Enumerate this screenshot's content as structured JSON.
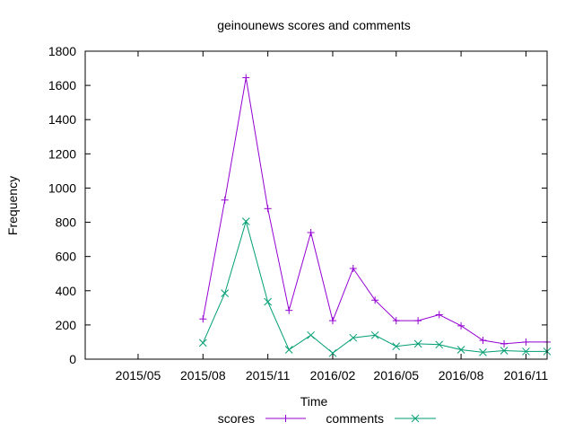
{
  "chart_data": {
    "type": "line",
    "title": "geinounews scores and comments",
    "xlabel": "Time",
    "ylabel": "Frequency",
    "xlim": [
      "2015-02-15",
      "2016-12-01"
    ],
    "ylim": [
      0,
      1800
    ],
    "yticks": [
      0,
      200,
      400,
      600,
      800,
      1000,
      1200,
      1400,
      1600,
      1800
    ],
    "xticks": [
      {
        "label": "2015/05",
        "date": "2015-05-01"
      },
      {
        "label": "2015/08",
        "date": "2015-08-01"
      },
      {
        "label": "2015/11",
        "date": "2015-11-01"
      },
      {
        "label": "2016/02",
        "date": "2016-02-01"
      },
      {
        "label": "2016/05",
        "date": "2016-05-01"
      },
      {
        "label": "2016/08",
        "date": "2016-08-01"
      },
      {
        "label": "2016/11",
        "date": "2016-11-01"
      }
    ],
    "x": [
      "2015-08-01",
      "2015-09-01",
      "2015-10-01",
      "2015-11-01",
      "2015-12-01",
      "2016-01-01",
      "2016-02-01",
      "2016-03-01",
      "2016-04-01",
      "2016-05-01",
      "2016-06-01",
      "2016-07-01",
      "2016-08-01",
      "2016-09-01",
      "2016-10-01",
      "2016-11-01",
      "2016-12-01"
    ],
    "series": [
      {
        "name": "scores",
        "color": "#9400d3",
        "marker": "plus",
        "values": [
          235,
          930,
          1645,
          880,
          285,
          740,
          225,
          530,
          345,
          225,
          225,
          260,
          195,
          110,
          90,
          100,
          100
        ]
      },
      {
        "name": "comments",
        "color": "#009e73",
        "marker": "cross",
        "values": [
          95,
          385,
          805,
          335,
          55,
          140,
          35,
          125,
          140,
          75,
          90,
          85,
          55,
          40,
          50,
          45,
          45
        ]
      }
    ],
    "grid": false,
    "legend": "bottom-center"
  }
}
